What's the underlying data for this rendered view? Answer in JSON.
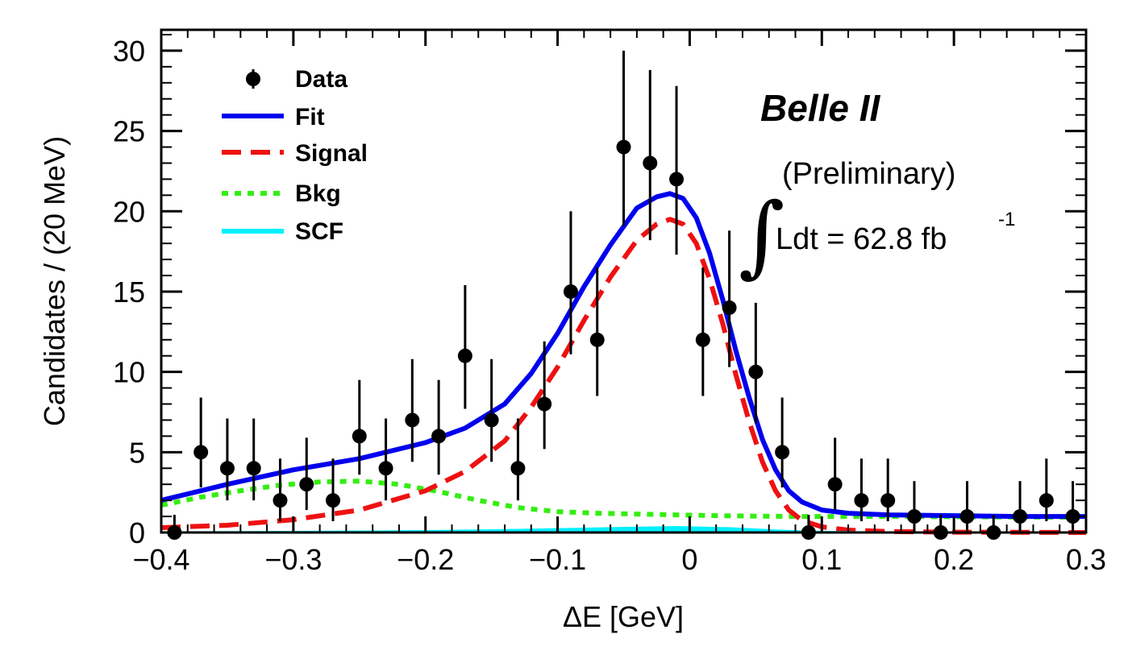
{
  "chart_data": {
    "type": "line",
    "xlabel": "ΔE [GeV]",
    "ylabel": "Candidates / (20 MeV)",
    "xlim": [
      -0.4,
      0.3
    ],
    "ylim": [
      0,
      31.3
    ],
    "x_ticks": [
      -0.4,
      -0.3,
      -0.2,
      -0.1,
      0,
      0.1,
      0.2,
      0.3
    ],
    "x_tick_labels": [
      "−0.4",
      "−0.3",
      "−0.2",
      "−0.1",
      "0",
      "0.1",
      "0.2",
      "0.3"
    ],
    "y_ticks": [
      0,
      5,
      10,
      15,
      20,
      25,
      30
    ],
    "y_tick_labels": [
      "0",
      "5",
      "10",
      "15",
      "20",
      "25",
      "30"
    ],
    "grid": false,
    "legend_position": "top-left",
    "legend": [
      {
        "key": "data",
        "label": "Data",
        "color": "#000000"
      },
      {
        "key": "fit",
        "label": "Fit",
        "color": "#0000ee"
      },
      {
        "key": "signal",
        "label": "Signal",
        "color": "#ee1111"
      },
      {
        "key": "bkg",
        "label": "Bkg",
        "color": "#33ee11"
      },
      {
        "key": "scf",
        "label": "SCF",
        "color": "#00f0ff"
      }
    ],
    "data_points": {
      "name": "Data",
      "x": [
        -0.39,
        -0.37,
        -0.35,
        -0.33,
        -0.31,
        -0.29,
        -0.27,
        -0.25,
        -0.23,
        -0.21,
        -0.19,
        -0.17,
        -0.15,
        -0.13,
        -0.11,
        -0.09,
        -0.07,
        -0.05,
        -0.03,
        -0.01,
        0.01,
        0.03,
        0.05,
        0.07,
        0.09,
        0.11,
        0.13,
        0.15,
        0.17,
        0.19,
        0.21,
        0.23,
        0.25,
        0.27,
        0.29
      ],
      "y": [
        0,
        5,
        4,
        4,
        2,
        3,
        2,
        6,
        4,
        7,
        6,
        11,
        7,
        4,
        8,
        15,
        12,
        24,
        23,
        22,
        12,
        14,
        10,
        5,
        0,
        3,
        2,
        2,
        1,
        0,
        1,
        0,
        1,
        2,
        1
      ]
    },
    "curves": [
      {
        "name": "Bkg",
        "x": [
          -0.4,
          -0.37,
          -0.34,
          -0.31,
          -0.28,
          -0.25,
          -0.22,
          -0.19,
          -0.16,
          -0.13,
          -0.1,
          -0.07,
          -0.04,
          -0.01,
          0.02,
          0.05,
          0.08,
          0.11,
          0.14,
          0.17,
          0.2,
          0.23,
          0.26,
          0.3
        ],
        "y": [
          1.7,
          2.2,
          2.6,
          2.95,
          3.15,
          3.2,
          3.0,
          2.55,
          2.0,
          1.55,
          1.3,
          1.2,
          1.15,
          1.1,
          1.05,
          1.02,
          1.0,
          1.0,
          1.0,
          1.0,
          0.98,
          0.97,
          0.96,
          0.95
        ]
      },
      {
        "name": "Signal",
        "x": [
          -0.4,
          -0.35,
          -0.3,
          -0.25,
          -0.2,
          -0.17,
          -0.14,
          -0.12,
          -0.1,
          -0.08,
          -0.06,
          -0.04,
          -0.025,
          -0.015,
          -0.005,
          0.005,
          0.015,
          0.025,
          0.035,
          0.045,
          0.055,
          0.065,
          0.075,
          0.085,
          0.1,
          0.12,
          0.15,
          0.2,
          0.25,
          0.3
        ],
        "y": [
          0.3,
          0.45,
          0.8,
          1.4,
          2.6,
          3.8,
          5.7,
          7.8,
          10.3,
          13.2,
          15.9,
          18.2,
          19.2,
          19.5,
          19.2,
          18.0,
          15.8,
          13.0,
          9.8,
          6.9,
          4.4,
          2.6,
          1.4,
          0.75,
          0.35,
          0.15,
          0.06,
          0.02,
          0.01,
          0.0
        ]
      },
      {
        "name": "SCF",
        "x": [
          -0.4,
          -0.3,
          -0.2,
          -0.15,
          -0.1,
          -0.05,
          -0.01,
          0.03,
          0.07,
          0.1,
          0.15,
          0.2,
          0.3
        ],
        "y": [
          0.02,
          0.05,
          0.1,
          0.15,
          0.22,
          0.3,
          0.35,
          0.28,
          0.12,
          0.05,
          0.02,
          0.01,
          0.0
        ]
      },
      {
        "name": "Fit",
        "x": [
          -0.4,
          -0.35,
          -0.3,
          -0.25,
          -0.2,
          -0.17,
          -0.14,
          -0.12,
          -0.1,
          -0.08,
          -0.06,
          -0.04,
          -0.025,
          -0.015,
          -0.005,
          0.005,
          0.015,
          0.025,
          0.035,
          0.045,
          0.055,
          0.065,
          0.075,
          0.085,
          0.1,
          0.12,
          0.15,
          0.2,
          0.25,
          0.3
        ],
        "y": [
          2.0,
          3.0,
          3.9,
          4.6,
          5.6,
          6.5,
          8.0,
          9.9,
          12.4,
          15.3,
          17.9,
          20.2,
          20.9,
          21.1,
          20.8,
          19.6,
          17.4,
          14.5,
          11.3,
          8.4,
          5.8,
          3.9,
          2.6,
          1.9,
          1.4,
          1.2,
          1.1,
          1.05,
          1.0,
          1.0
        ]
      }
    ],
    "data_errors": {
      "name": "Data",
      "yerr_low": [
        0,
        2.2,
        2.0,
        2.0,
        1.3,
        1.6,
        1.3,
        2.4,
        2.0,
        2.6,
        2.4,
        3.3,
        2.6,
        2.0,
        2.8,
        3.9,
        3.5,
        4.9,
        4.8,
        4.7,
        3.5,
        3.7,
        3.2,
        2.2,
        0,
        1.6,
        1.3,
        1.3,
        1.0,
        0,
        1.0,
        0,
        1.0,
        1.3,
        1.0
      ],
      "yerr_high": [
        1.1,
        3.4,
        3.1,
        3.1,
        2.6,
        2.9,
        2.6,
        3.5,
        3.1,
        3.8,
        3.5,
        4.4,
        3.8,
        3.1,
        3.9,
        5.0,
        4.5,
        6.0,
        5.8,
        5.8,
        4.5,
        4.8,
        4.3,
        3.4,
        1.1,
        2.9,
        2.6,
        2.6,
        2.2,
        1.1,
        2.2,
        1.1,
        2.2,
        2.6,
        2.2
      ]
    },
    "annotations": {
      "experiment": "Belle II",
      "status": "(Preliminary)",
      "lumi_text": "Ldt = 62.8 fb",
      "lumi_exponent": "-1",
      "integral_symbol": "∫"
    }
  }
}
